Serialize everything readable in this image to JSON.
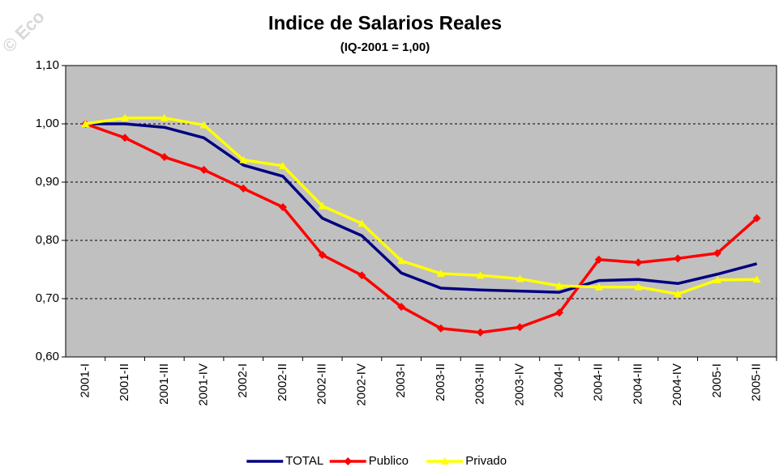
{
  "chart_data": {
    "type": "line",
    "title": "Indice de Salarios Reales",
    "subtitle": "(IQ-2001 = 1,00)",
    "watermark": "© Eco",
    "categories": [
      "2001-I",
      "2001-II",
      "2001-III",
      "2001-IV",
      "2002-I",
      "2002-II",
      "2002-III",
      "2002-IV",
      "2003-I",
      "2003-II",
      "2003-III",
      "2003-IV",
      "2004-I",
      "2004-II",
      "2004-III",
      "2004-IV",
      "2005-I",
      "2005-II"
    ],
    "series": [
      {
        "name": "TOTAL",
        "color": "#000080",
        "marker": "none",
        "values": [
          1.0,
          1.0,
          0.994,
          0.976,
          0.929,
          0.91,
          0.838,
          0.808,
          0.744,
          0.718,
          0.715,
          0.713,
          0.711,
          0.731,
          0.733,
          0.726,
          0.742,
          0.76
        ]
      },
      {
        "name": "Publico",
        "color": "#ff0000",
        "marker": "diamond",
        "values": [
          1.0,
          0.976,
          0.943,
          0.921,
          0.889,
          0.857,
          0.775,
          0.74,
          0.686,
          0.649,
          0.642,
          0.651,
          0.676,
          0.767,
          0.762,
          0.769,
          0.778,
          0.838
        ]
      },
      {
        "name": "Privado",
        "color": "#ffff00",
        "marker": "triangle",
        "values": [
          1.0,
          1.01,
          1.01,
          0.998,
          0.938,
          0.928,
          0.859,
          0.829,
          0.765,
          0.743,
          0.74,
          0.734,
          0.722,
          0.72,
          0.72,
          0.708,
          0.732,
          0.733
        ]
      }
    ],
    "ylim": [
      0.6,
      1.1
    ],
    "yticks": [
      {
        "value": 0.6,
        "label": "0,60"
      },
      {
        "value": 0.7,
        "label": "0,70"
      },
      {
        "value": 0.8,
        "label": "0,80"
      },
      {
        "value": 0.9,
        "label": "0,90"
      },
      {
        "value": 1.0,
        "label": "1,00"
      },
      {
        "value": 1.1,
        "label": "1,10"
      }
    ],
    "grid": true,
    "plot_background": "#c0c0c0",
    "legend": "bottom"
  }
}
